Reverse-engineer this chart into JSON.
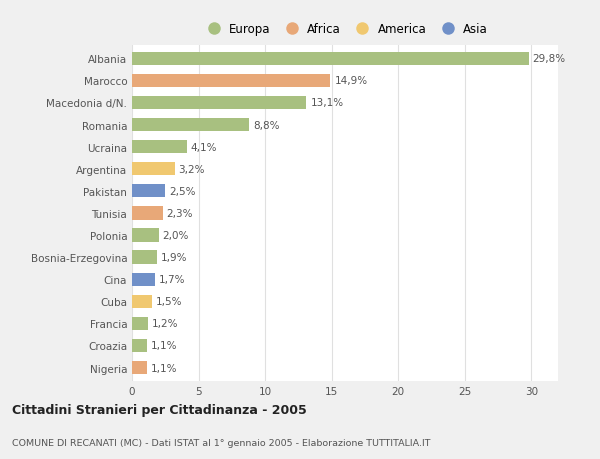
{
  "countries": [
    "Albania",
    "Marocco",
    "Macedonia d/N.",
    "Romania",
    "Ucraina",
    "Argentina",
    "Pakistan",
    "Tunisia",
    "Polonia",
    "Bosnia-Erzegovina",
    "Cina",
    "Cuba",
    "Francia",
    "Croazia",
    "Nigeria"
  ],
  "values": [
    29.8,
    14.9,
    13.1,
    8.8,
    4.1,
    3.2,
    2.5,
    2.3,
    2.0,
    1.9,
    1.7,
    1.5,
    1.2,
    1.1,
    1.1
  ],
  "labels": [
    "29,8%",
    "14,9%",
    "13,1%",
    "8,8%",
    "4,1%",
    "3,2%",
    "2,5%",
    "2,3%",
    "2,0%",
    "1,9%",
    "1,7%",
    "1,5%",
    "1,2%",
    "1,1%",
    "1,1%"
  ],
  "continents": [
    "Europa",
    "Africa",
    "Europa",
    "Europa",
    "Europa",
    "America",
    "Asia",
    "Africa",
    "Europa",
    "Europa",
    "Asia",
    "America",
    "Europa",
    "Europa",
    "Africa"
  ],
  "colors": {
    "Europa": "#a8c080",
    "Africa": "#e8a878",
    "America": "#f0c870",
    "Asia": "#7090c8"
  },
  "xlim": [
    0,
    32
  ],
  "xticks": [
    0,
    5,
    10,
    15,
    20,
    25,
    30
  ],
  "title": "Cittadini Stranieri per Cittadinanza - 2005",
  "subtitle": "COMUNE DI RECANATI (MC) - Dati ISTAT al 1° gennaio 2005 - Elaborazione TUTTITALIA.IT",
  "bg_color": "#f0f0f0",
  "plot_bg_color": "#ffffff",
  "grid_color": "#e0e0e0",
  "label_fontsize": 7.5,
  "tick_fontsize": 7.5,
  "legend_order": [
    "Europa",
    "Africa",
    "America",
    "Asia"
  ]
}
